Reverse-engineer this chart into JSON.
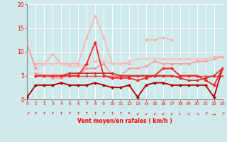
{
  "x": [
    0,
    1,
    2,
    3,
    4,
    5,
    6,
    7,
    8,
    9,
    10,
    11,
    12,
    13,
    14,
    15,
    16,
    17,
    18,
    19,
    20,
    21,
    22,
    23
  ],
  "lines": [
    {
      "y": [
        11.5,
        6.5,
        null,
        null,
        null,
        null,
        null,
        null,
        null,
        null,
        null,
        null,
        null,
        null,
        null,
        null,
        null,
        null,
        null,
        null,
        null,
        null,
        null,
        null
      ],
      "color": "#ff8888",
      "lw": 1.0,
      "marker": "D",
      "ms": 2.0,
      "zorder": 3
    },
    {
      "y": [
        null,
        7.5,
        7.5,
        9.5,
        7.5,
        7.5,
        7.5,
        13.0,
        17.5,
        13.0,
        7.5,
        7.5,
        7.5,
        null,
        null,
        null,
        null,
        null,
        null,
        null,
        null,
        null,
        null,
        null
      ],
      "color": "#ffaaaa",
      "lw": 1.0,
      "marker": "D",
      "ms": 2.0,
      "zorder": 2
    },
    {
      "y": [
        null,
        null,
        null,
        null,
        null,
        null,
        null,
        null,
        null,
        null,
        null,
        null,
        null,
        null,
        12.5,
        12.5,
        13.0,
        12.5,
        null,
        null,
        null,
        null,
        null,
        null
      ],
      "color": "#ffaaaa",
      "lw": 1.0,
      "marker": "D",
      "ms": 2.0,
      "zorder": 2
    },
    {
      "y": [
        null,
        6.5,
        7.5,
        7.5,
        7.5,
        7.0,
        7.0,
        7.5,
        8.0,
        8.0,
        7.5,
        7.5,
        8.0,
        8.5,
        8.5,
        8.5,
        8.5,
        8.5,
        8.5,
        8.5,
        8.5,
        8.5,
        9.0,
        9.0
      ],
      "color": "#ffbbbb",
      "lw": 1.0,
      "marker": "D",
      "ms": 2.0,
      "zorder": 2
    },
    {
      "y": [
        null,
        5.5,
        5.0,
        4.5,
        4.5,
        5.0,
        5.0,
        6.5,
        6.5,
        7.5,
        5.0,
        5.0,
        6.5,
        6.5,
        7.0,
        8.0,
        7.5,
        7.5,
        7.5,
        7.5,
        8.0,
        8.0,
        8.5,
        9.0
      ],
      "color": "#ff9999",
      "lw": 1.0,
      "marker": "D",
      "ms": 2.0,
      "zorder": 3
    },
    {
      "y": [
        null,
        5.0,
        5.0,
        5.0,
        5.0,
        5.5,
        5.5,
        5.5,
        5.5,
        5.5,
        5.5,
        5.0,
        5.0,
        5.0,
        5.0,
        5.0,
        5.0,
        5.0,
        4.5,
        4.0,
        4.0,
        4.5,
        5.0,
        6.5
      ],
      "color": "#cc3333",
      "lw": 1.2,
      "marker": "D",
      "ms": 2.0,
      "zorder": 4
    },
    {
      "y": [
        null,
        5.0,
        5.0,
        5.0,
        5.0,
        5.0,
        5.0,
        7.5,
        12.0,
        5.0,
        4.5,
        4.5,
        4.5,
        4.0,
        4.5,
        5.0,
        6.5,
        6.5,
        5.0,
        5.0,
        5.0,
        4.0,
        3.0,
        6.5
      ],
      "color": "#ff2222",
      "lw": 1.3,
      "marker": "D",
      "ms": 2.2,
      "zorder": 5
    },
    {
      "y": [
        0.5,
        3.0,
        3.0,
        3.0,
        3.5,
        3.0,
        3.0,
        3.0,
        3.5,
        3.0,
        2.5,
        2.5,
        3.0,
        0.5,
        3.0,
        3.5,
        3.5,
        3.0,
        3.0,
        3.0,
        3.0,
        3.0,
        0.5,
        6.5
      ],
      "color": "#aa0000",
      "lw": 1.3,
      "marker": "D",
      "ms": 2.2,
      "zorder": 4
    },
    {
      "y": [
        null,
        5.0,
        5.0,
        5.0,
        5.0,
        5.0,
        5.0,
        5.0,
        5.0,
        5.0,
        5.0,
        5.0,
        5.0,
        5.0,
        5.0,
        5.0,
        5.0,
        5.0,
        5.0,
        5.0,
        5.0,
        5.0,
        5.0,
        5.0
      ],
      "color": "#ee4444",
      "lw": 1.0,
      "marker": "D",
      "ms": 1.8,
      "zorder": 2
    }
  ],
  "xlim": [
    0,
    23
  ],
  "ylim": [
    0,
    20
  ],
  "yticks": [
    0,
    5,
    10,
    15,
    20
  ],
  "xticks": [
    0,
    1,
    2,
    3,
    4,
    5,
    6,
    7,
    8,
    9,
    10,
    11,
    12,
    13,
    14,
    15,
    16,
    17,
    18,
    19,
    20,
    21,
    22,
    23
  ],
  "xlabel": "Vent moyen/en rafales ( km/h )",
  "bg_color": "#ceeaea",
  "grid_color": "#ffffff",
  "tick_color": "#ff0000",
  "label_color": "#ff0000",
  "arrow_syms": [
    "↗",
    "↑",
    "↑",
    "↑",
    "↑",
    "↑",
    "↑",
    "↑",
    "↑",
    "↑",
    "↑",
    "↑",
    "↖",
    "↙",
    "↙",
    "↙",
    "↙",
    "↙",
    "↓",
    "↙",
    "↘",
    "↗",
    "→",
    "↗"
  ]
}
